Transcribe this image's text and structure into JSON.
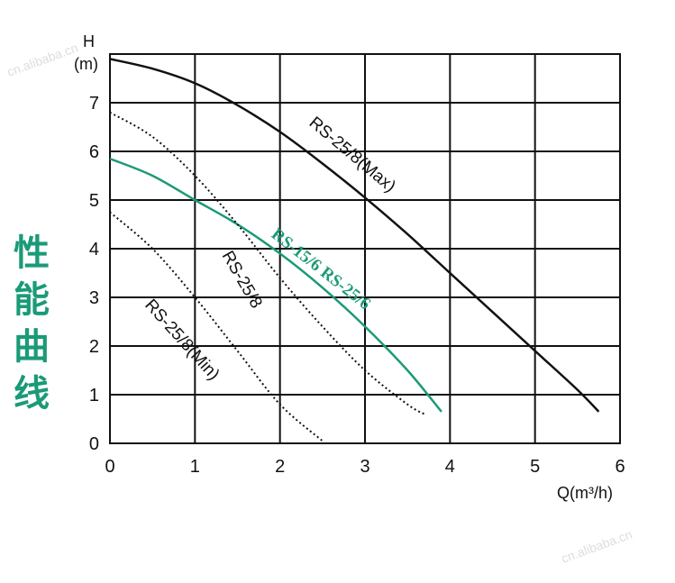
{
  "side_title": [
    "性",
    "能",
    "曲",
    "线"
  ],
  "watermark": "cn.alibaba.cn",
  "chart_data": {
    "type": "line",
    "xlabel": "Q(m³/h)",
    "ylabel_lines": [
      "H",
      "(m)"
    ],
    "xlim": [
      0,
      6
    ],
    "ylim": [
      0,
      8
    ],
    "x_ticks": [
      "0",
      "1",
      "2",
      "3",
      "4",
      "5",
      "6"
    ],
    "y_ticks": [
      "0",
      "1",
      "2",
      "3",
      "4",
      "5",
      "6",
      "7"
    ],
    "grid": true,
    "series": [
      {
        "name": "RS-25/8(Max)",
        "style": "solid",
        "color": "#111111",
        "x": [
          0,
          0.5,
          1,
          1.5,
          2,
          2.5,
          3,
          3.5,
          4,
          4.5,
          5,
          5.5,
          5.75
        ],
        "y": [
          7.9,
          7.7,
          7.4,
          6.95,
          6.4,
          5.75,
          5.05,
          4.3,
          3.5,
          2.7,
          1.9,
          1.1,
          0.65
        ]
      },
      {
        "name": "RS-15/6 RS-25/6",
        "style": "solid",
        "color": "#1b9a78",
        "x": [
          0,
          0.5,
          1,
          1.5,
          2,
          2.5,
          3,
          3.5,
          3.9
        ],
        "y": [
          5.85,
          5.5,
          5.0,
          4.5,
          3.9,
          3.2,
          2.4,
          1.5,
          0.65
        ]
      },
      {
        "name": "RS-25/8",
        "style": "dotted",
        "color": "#111111",
        "x": [
          0,
          0.5,
          1,
          1.5,
          2,
          2.5,
          3,
          3.5,
          3.7
        ],
        "y": [
          6.8,
          6.3,
          5.5,
          4.5,
          3.4,
          2.4,
          1.5,
          0.8,
          0.6
        ]
      },
      {
        "name": "RS-25/8(Min)",
        "style": "dotted",
        "color": "#111111",
        "x": [
          0,
          0.5,
          1,
          1.5,
          2,
          2.5
        ],
        "y": [
          4.75,
          4.0,
          3.0,
          1.9,
          0.8,
          0.05
        ]
      }
    ]
  }
}
